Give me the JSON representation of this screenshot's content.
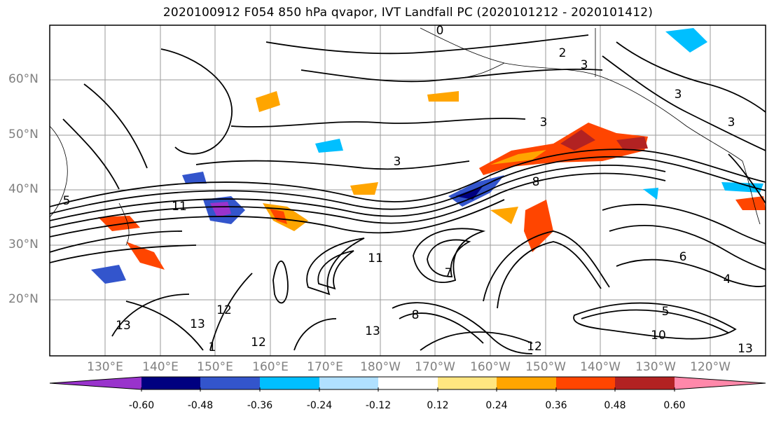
{
  "title": "2020100912 F054 850 hPa qvapor, IVT Landfall PC (2020101212 - 2020101412)",
  "lat_labels": [
    "60°N",
    "50°N",
    "40°N",
    "30°N",
    "20°N"
  ],
  "lon_labels": [
    "130°E",
    "140°E",
    "150°E",
    "160°E",
    "170°E",
    "180°W",
    "170°W",
    "160°W",
    "150°W",
    "140°W",
    "130°W",
    "120°W"
  ],
  "colorbar": {
    "colors": [
      "#9933cc",
      "#000080",
      "#3355cc",
      "#00bfff",
      "#b0e0ff",
      "#ffffff",
      "#ffe680",
      "#ffa500",
      "#ff4500",
      "#b22222",
      "#ff88aa"
    ],
    "tick_labels": [
      "-0.60",
      "-0.48",
      "-0.36",
      "-0.24",
      "-0.12",
      "0.12",
      "0.24",
      "0.36",
      "0.48",
      "0.60"
    ]
  },
  "contour_labels": [
    "0",
    "2",
    "3",
    "3",
    "3",
    "3",
    "3",
    "5",
    "8",
    "11",
    "11",
    "12",
    "12",
    "13",
    "13",
    "13",
    "1",
    "6",
    "4",
    "5",
    "10",
    "12",
    "8",
    "7",
    "13"
  ]
}
